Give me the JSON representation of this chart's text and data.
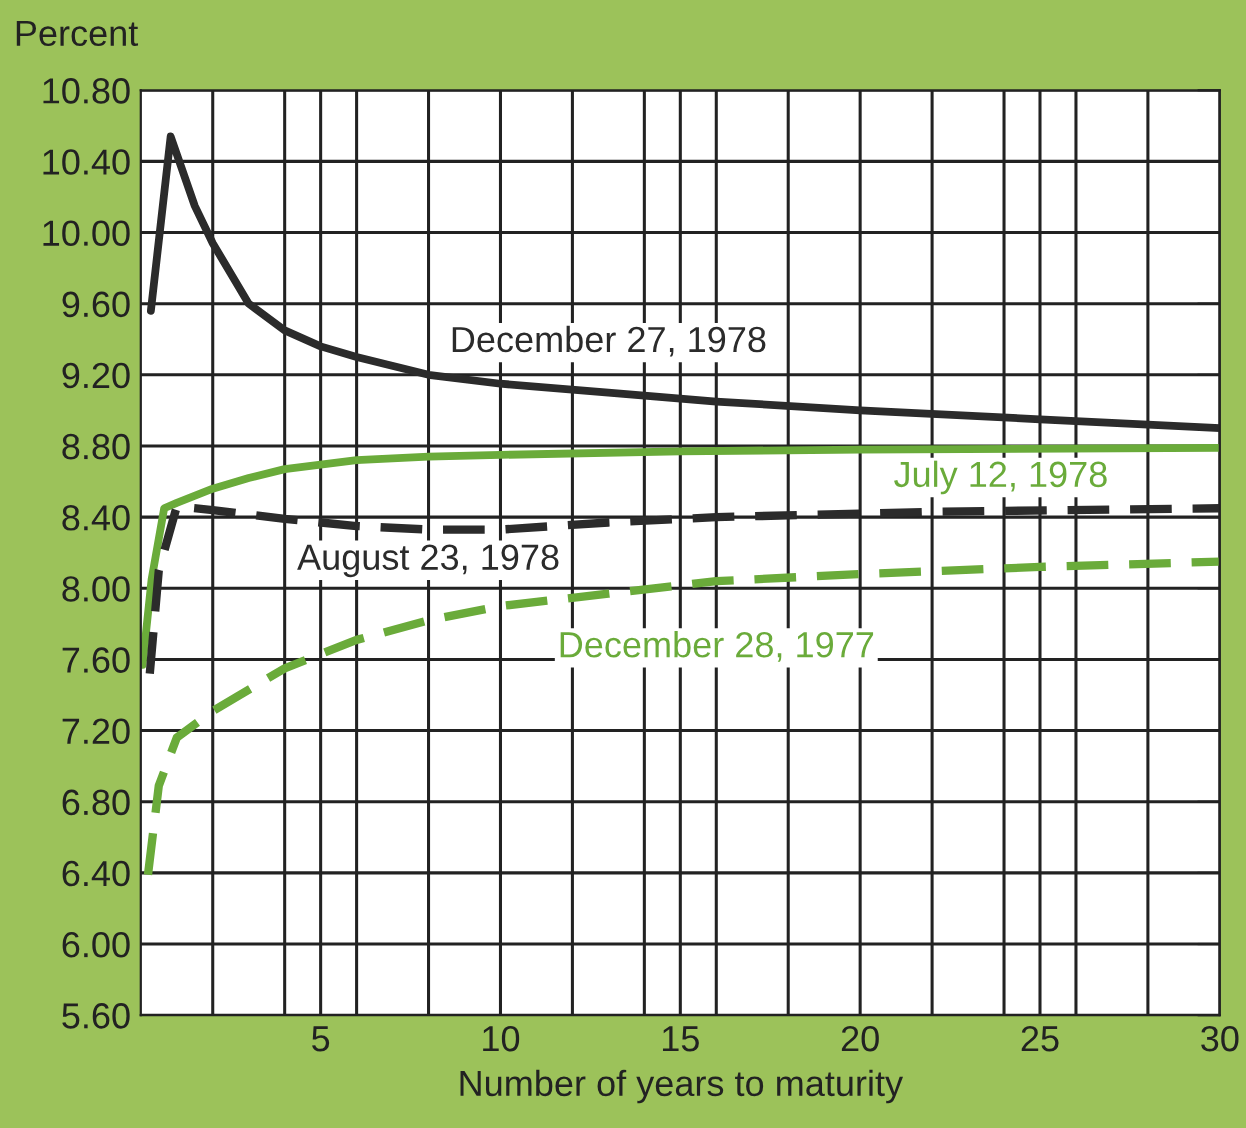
{
  "chart_data": {
    "type": "line",
    "ylabel": "Percent",
    "xlabel": "Number of years to maturity",
    "xlim": [
      0,
      30
    ],
    "ylim": [
      5.6,
      10.8
    ],
    "xticks": [
      {
        "value": 2,
        "label": null
      },
      {
        "value": 4,
        "label": null
      },
      5,
      {
        "value": 6,
        "label": null
      },
      {
        "value": 8,
        "label": null
      },
      10,
      {
        "value": 12,
        "label": null
      },
      {
        "value": 14,
        "label": null
      },
      15,
      {
        "value": 16,
        "label": null
      },
      {
        "value": 18,
        "label": null
      },
      20,
      {
        "value": 22,
        "label": null
      },
      {
        "value": 24,
        "label": null
      },
      25,
      {
        "value": 26,
        "label": null
      },
      {
        "value": 28,
        "label": null
      },
      30
    ],
    "yticks": [
      {
        "value": 5.6,
        "label": "5.60"
      },
      {
        "value": 6.0,
        "label": "6.00"
      },
      {
        "value": 6.4,
        "label": "6.40"
      },
      {
        "value": 6.8,
        "label": "6.80"
      },
      {
        "value": 7.2,
        "label": "7.20"
      },
      {
        "value": 7.6,
        "label": "7.60"
      },
      {
        "value": 8.0,
        "label": "8.00"
      },
      {
        "value": 8.4,
        "label": "8.40"
      },
      {
        "value": 8.8,
        "label": "8.80"
      },
      {
        "value": 9.2,
        "label": "9.20"
      },
      {
        "value": 9.6,
        "label": "9.60"
      },
      {
        "value": 10.0,
        "label": "10.00"
      },
      {
        "value": 10.4,
        "label": "10.40"
      },
      {
        "value": 10.8,
        "label": "10.80"
      }
    ],
    "grid": true,
    "legend": false,
    "series": [
      {
        "name": "December 27, 1978",
        "color": "#2b2b2b",
        "line_style": "solid",
        "x": [
          0.28,
          0.83,
          1.5,
          2,
          3,
          4,
          5,
          6,
          8,
          10,
          13,
          16,
          20,
          25,
          30
        ],
        "values": [
          9.56,
          10.54,
          10.15,
          9.94,
          9.6,
          9.45,
          9.36,
          9.3,
          9.2,
          9.15,
          9.1,
          9.05,
          9.0,
          8.95,
          8.9
        ]
      },
      {
        "name": "July 12, 1978",
        "color": "#6aab3a",
        "line_style": "solid",
        "x": [
          0.05,
          0.3,
          0.65,
          1,
          2,
          3,
          4,
          6,
          8,
          10,
          15,
          20,
          30
        ],
        "values": [
          7.57,
          8.05,
          8.45,
          8.48,
          8.56,
          8.62,
          8.67,
          8.72,
          8.74,
          8.75,
          8.77,
          8.78,
          8.79
        ]
      },
      {
        "name": "August 23, 1978",
        "color": "#2b2b2b",
        "line_style": "dashed",
        "x": [
          0.25,
          0.5,
          1,
          2,
          4,
          6,
          8,
          10,
          13,
          16,
          22,
          30
        ],
        "values": [
          7.52,
          8.1,
          8.46,
          8.44,
          8.39,
          8.35,
          8.33,
          8.33,
          8.37,
          8.4,
          8.43,
          8.45
        ]
      },
      {
        "name": "December 28, 1977",
        "color": "#6aab3a",
        "line_style": "dashed",
        "x": [
          0.2,
          0.5,
          1,
          2,
          4,
          6,
          8,
          10,
          13,
          16,
          20,
          25,
          30
        ],
        "values": [
          6.39,
          6.89,
          7.16,
          7.31,
          7.55,
          7.71,
          7.82,
          7.9,
          7.97,
          8.04,
          8.08,
          8.12,
          8.15
        ]
      }
    ]
  }
}
